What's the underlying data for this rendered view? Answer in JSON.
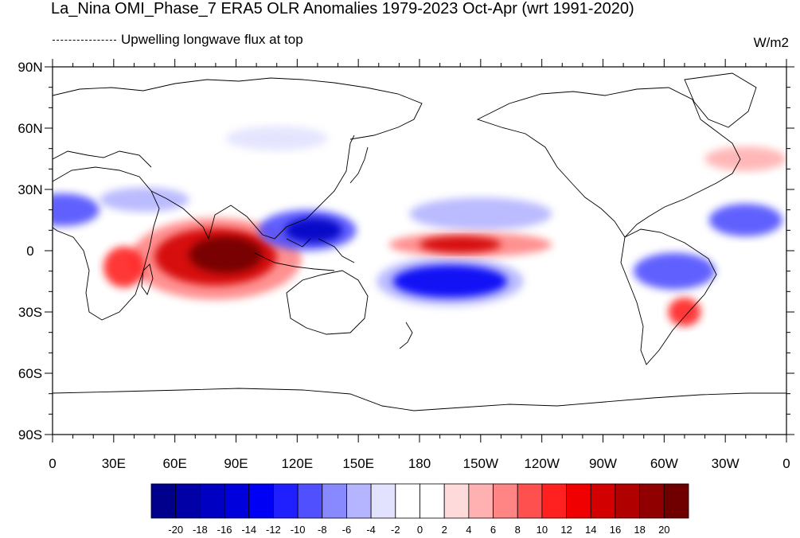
{
  "title": "La_Nina OMI_Phase_7 ERA5 OLR Anomalies 1979-2023 Oct-Apr (wrt 1991-2020)",
  "subtitle": "Upwelling longwave flux at top",
  "units": "W/m2",
  "map": {
    "lon_ticks": [
      "0",
      "30E",
      "60E",
      "90E",
      "120E",
      "150E",
      "180",
      "150W",
      "120W",
      "90W",
      "60W",
      "30W",
      "0"
    ],
    "lat_ticks": [
      "90N",
      "60N",
      "30N",
      "0",
      "30S",
      "60S",
      "90S"
    ],
    "lon_range": [
      0,
      360
    ],
    "lat_range": [
      -90,
      90
    ]
  },
  "colorbar": {
    "labels": [
      "-20",
      "-18",
      "-16",
      "-14",
      "-12",
      "-10",
      "-8",
      "-6",
      "-4",
      "-2",
      "0",
      "2",
      "4",
      "6",
      "8",
      "10",
      "12",
      "14",
      "16",
      "18",
      "20"
    ],
    "colors": [
      "#00008c",
      "#0000a6",
      "#0000c3",
      "#0000dc",
      "#0000f5",
      "#2020ff",
      "#5050ff",
      "#8888ff",
      "#b4b4ff",
      "#e2e2ff",
      "#ffffff",
      "#ffffff",
      "#ffdada",
      "#ffb0b0",
      "#ff8484",
      "#ff5050",
      "#ff2020",
      "#f00000",
      "#d20000",
      "#b00000",
      "#900000",
      "#700000"
    ]
  },
  "anomalies": [
    {
      "name": "indian-ocean-positive-core",
      "lon": 85,
      "lat": -2,
      "rx": 18,
      "ry": 9,
      "level": 20
    },
    {
      "name": "indian-ocean-positive",
      "lon": 80,
      "lat": -3,
      "rx": 30,
      "ry": 14,
      "level": 14
    },
    {
      "name": "indian-ocean-positive-outer",
      "lon": 80,
      "lat": -4,
      "rx": 42,
      "ry": 20,
      "level": 6
    },
    {
      "name": "east-africa-positive",
      "lon": 35,
      "lat": -8,
      "rx": 10,
      "ry": 10,
      "level": 10
    },
    {
      "name": "maritime-continent-negative-core",
      "lon": 128,
      "lat": 10,
      "rx": 14,
      "ry": 6,
      "level": -18
    },
    {
      "name": "maritime-continent-negative",
      "lon": 125,
      "lat": 10,
      "rx": 24,
      "ry": 10,
      "level": -10
    },
    {
      "name": "central-pacific-positive-core",
      "lon": 200,
      "lat": 3,
      "rx": 20,
      "ry": 4,
      "level": 14
    },
    {
      "name": "central-pacific-positive",
      "lon": 205,
      "lat": 3,
      "rx": 40,
      "ry": 6,
      "level": 6
    },
    {
      "name": "spcz-negative",
      "lon": 195,
      "lat": -15,
      "rx": 28,
      "ry": 8,
      "level": -14
    },
    {
      "name": "spcz-negative-outer",
      "lon": 195,
      "lat": -15,
      "rx": 36,
      "ry": 12,
      "level": -6
    },
    {
      "name": "subtropical-pacific-negative",
      "lon": 210,
      "lat": 18,
      "rx": 35,
      "ry": 8,
      "level": -6
    },
    {
      "name": "west-africa-negative",
      "lon": 5,
      "lat": 20,
      "rx": 18,
      "ry": 8,
      "level": -10
    },
    {
      "name": "arabia-negative",
      "lon": 45,
      "lat": 25,
      "rx": 22,
      "ry": 6,
      "level": -6
    },
    {
      "name": "atlantic-negative",
      "lon": 340,
      "lat": 15,
      "rx": 18,
      "ry": 8,
      "level": -10
    },
    {
      "name": "amazon-negative",
      "lon": 305,
      "lat": -10,
      "rx": 20,
      "ry": 9,
      "level": -10
    },
    {
      "name": "south-america-positive",
      "lon": 310,
      "lat": -30,
      "rx": 8,
      "ry": 7,
      "level": 10
    },
    {
      "name": "north-atlantic-positive",
      "lon": 340,
      "lat": 45,
      "rx": 20,
      "ry": 6,
      "level": 4
    },
    {
      "name": "eurasia-negative",
      "lon": 110,
      "lat": 55,
      "rx": 25,
      "ry": 6,
      "level": -4
    }
  ]
}
